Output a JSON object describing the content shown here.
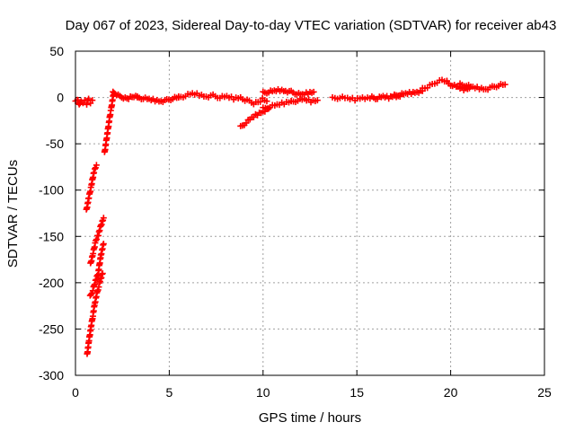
{
  "chart_data": {
    "type": "scatter",
    "title": "Day 067 of 2023, Sidereal Day-to-day VTEC variation (SDTVAR) for receiver ab43",
    "xlabel": "GPS time / hours",
    "ylabel": "SDTVAR / TECUs",
    "xlim": [
      0,
      25
    ],
    "ylim": [
      -300,
      50
    ],
    "xticks": [
      0,
      5,
      10,
      15,
      20,
      25
    ],
    "yticks": [
      50,
      0,
      -50,
      -100,
      -150,
      -200,
      -250,
      -300
    ],
    "grid": true,
    "marker": "+",
    "color": "#ff0000",
    "series": [
      {
        "name": "SDTVAR",
        "segments": [
          {
            "x0": 0.0,
            "x1": 0.9,
            "y": [
              -5,
              -2,
              -8,
              -3,
              -6,
              -4,
              -7,
              -2,
              -5,
              -3
            ]
          },
          {
            "x0": 0.58,
            "x1": 1.12,
            "y": [
              -122,
              -108,
              -95,
              -80,
              -73
            ]
          },
          {
            "x0": 0.8,
            "x1": 1.5,
            "y": [
              -180,
              -168,
              -155,
              -148,
              -138,
              -130
            ]
          },
          {
            "x0": 0.78,
            "x1": 1.5,
            "y": [
              -215,
              -208,
              -198,
              -190,
              -170,
              -158
            ]
          },
          {
            "x0": 0.62,
            "x1": 1.45,
            "y": [
              -278,
              -262,
              -248,
              -235,
              -222,
              -212,
              -204,
              -196,
              -190
            ]
          },
          {
            "x0": 1.55,
            "x1": 2.05,
            "y": [
              -60,
              -50,
              -40,
              -30,
              -20,
              -12,
              -2,
              5
            ]
          },
          {
            "x0": 2.0,
            "x1": 3.3,
            "y": [
              5,
              3,
              1,
              0,
              -1,
              0,
              1,
              0
            ]
          },
          {
            "x0": 3.3,
            "x1": 5.5,
            "y": [
              0,
              -1,
              -2,
              -3,
              -4,
              -3,
              -1,
              0
            ]
          },
          {
            "x0": 5.5,
            "x1": 8.8,
            "y": [
              0,
              2,
              4,
              3,
              1,
              2,
              0,
              1,
              -1,
              0
            ]
          },
          {
            "x0": 8.8,
            "x1": 10.2,
            "y": [
              -1,
              -3,
              -4,
              -6,
              -5,
              -2,
              -4
            ]
          },
          {
            "x0": 8.8,
            "x1": 10.3,
            "y": [
              -32,
              -27,
              -22,
              -18,
              -15,
              -12
            ]
          },
          {
            "x0": 10.0,
            "x1": 11.5,
            "y": [
              -12,
              -10,
              -8,
              -6,
              -4
            ]
          },
          {
            "x0": 10.0,
            "x1": 12.7,
            "y": [
              5,
              6,
              7,
              8,
              7,
              6,
              4,
              3,
              5,
              6
            ]
          },
          {
            "x0": 11.5,
            "x1": 12.9,
            "y": [
              -5,
              -3,
              -2,
              -4,
              -3
            ]
          },
          {
            "x0": 13.7,
            "x1": 15.7,
            "y": [
              -1,
              0,
              -1,
              -2,
              0,
              -1
            ]
          },
          {
            "x0": 15.8,
            "x1": 17.3,
            "y": [
              0,
              -1,
              1,
              0,
              2,
              1
            ]
          },
          {
            "x0": 17.0,
            "x1": 18.5,
            "y": [
              2,
              3,
              4,
              5,
              6,
              7
            ]
          },
          {
            "x0": 18.5,
            "x1": 19.8,
            "y": [
              9,
              11,
              14,
              17,
              19,
              18
            ]
          },
          {
            "x0": 19.8,
            "x1": 21.0,
            "y": [
              16,
              13,
              11,
              9,
              10
            ]
          },
          {
            "x0": 20.5,
            "x1": 22.9,
            "y": [
              14,
              13,
              11,
              10,
              9,
              11,
              13,
              14
            ]
          }
        ]
      }
    ]
  }
}
